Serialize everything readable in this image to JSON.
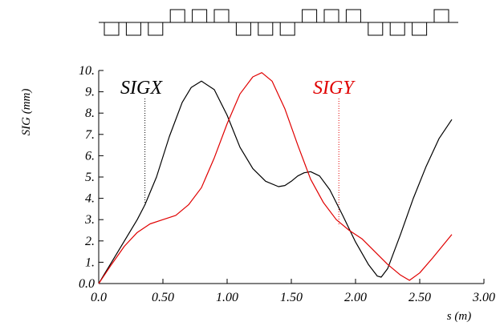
{
  "chart_data": {
    "type": "line",
    "title": "",
    "xlabel": "s (m)",
    "ylabel": "SIG (mm)",
    "xlim": [
      0.0,
      3.0
    ],
    "ylim": [
      0.0,
      10.0
    ],
    "x_ticks": [
      "0.0",
      "0.50",
      "1.00",
      "1.50",
      "2.00",
      "2.50",
      "3.00"
    ],
    "y_ticks": [
      "0.0",
      "1.",
      "2.",
      "3.",
      "4.",
      "5.",
      "6.",
      "7.",
      "8.",
      "9.",
      "10."
    ],
    "grid": false,
    "colors": {
      "SIGX": "#000000",
      "SIGY": "#e00000"
    },
    "series": [
      {
        "name": "SIGX",
        "color": "#000000",
        "x": [
          0.0,
          0.1,
          0.2,
          0.3,
          0.36,
          0.45,
          0.55,
          0.65,
          0.72,
          0.8,
          0.9,
          1.0,
          1.1,
          1.2,
          1.3,
          1.4,
          1.45,
          1.5,
          1.55,
          1.6,
          1.65,
          1.72,
          1.8,
          1.9,
          2.0,
          2.1,
          2.17,
          2.2,
          2.25,
          2.35,
          2.45,
          2.55,
          2.65,
          2.75
        ],
        "y": [
          0.0,
          1.0,
          2.0,
          3.0,
          3.7,
          5.0,
          6.9,
          8.5,
          9.2,
          9.5,
          9.1,
          7.9,
          6.4,
          5.4,
          4.8,
          4.55,
          4.6,
          4.8,
          5.05,
          5.2,
          5.25,
          5.05,
          4.4,
          3.2,
          1.95,
          0.9,
          0.35,
          0.3,
          0.7,
          2.3,
          4.0,
          5.5,
          6.8,
          7.7
        ]
      },
      {
        "name": "SIGY",
        "color": "#e00000",
        "x": [
          0.0,
          0.1,
          0.2,
          0.3,
          0.4,
          0.5,
          0.6,
          0.7,
          0.8,
          0.9,
          1.0,
          1.1,
          1.2,
          1.27,
          1.35,
          1.45,
          1.55,
          1.65,
          1.75,
          1.85,
          1.95,
          2.05,
          2.15,
          2.25,
          2.35,
          2.42,
          2.5,
          2.6,
          2.75
        ],
        "y": [
          0.0,
          0.9,
          1.75,
          2.4,
          2.8,
          3.0,
          3.2,
          3.7,
          4.5,
          5.9,
          7.5,
          8.9,
          9.7,
          9.9,
          9.5,
          8.2,
          6.5,
          4.9,
          3.8,
          3.0,
          2.5,
          2.1,
          1.5,
          0.9,
          0.4,
          0.15,
          0.5,
          1.2,
          2.3
        ]
      }
    ],
    "markers": [
      {
        "series": "SIGX",
        "x": 0.36,
        "y": 3.7
      },
      {
        "series": "SIGY",
        "x": 1.87,
        "y": 2.7
      }
    ],
    "lattice": [
      -1,
      -1,
      -1,
      1,
      1,
      1,
      -1,
      -1,
      -1,
      1,
      1,
      1,
      -1,
      -1,
      -1,
      1
    ]
  }
}
